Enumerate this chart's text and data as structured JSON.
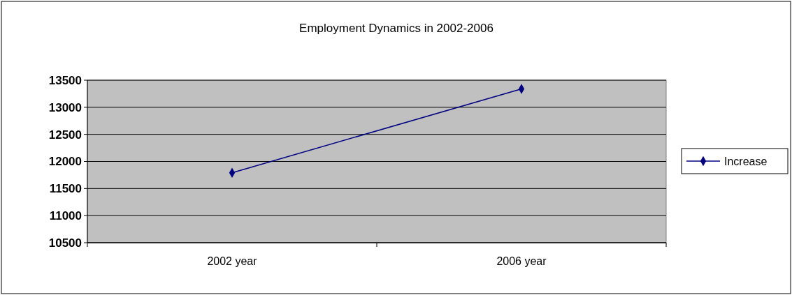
{
  "chart_data": {
    "type": "line",
    "title": "Employment Dynamics in 2002-2006",
    "categories": [
      "2002 year",
      "2006 year"
    ],
    "series": [
      {
        "name": "Increase",
        "color": "#000080",
        "values": [
          11790,
          13340
        ]
      }
    ],
    "ylim": [
      10500,
      13500
    ],
    "yticks": [
      10500,
      11000,
      11500,
      12000,
      12500,
      13000,
      13500
    ],
    "grid": "y",
    "legend": "right",
    "marker": "diamond"
  }
}
